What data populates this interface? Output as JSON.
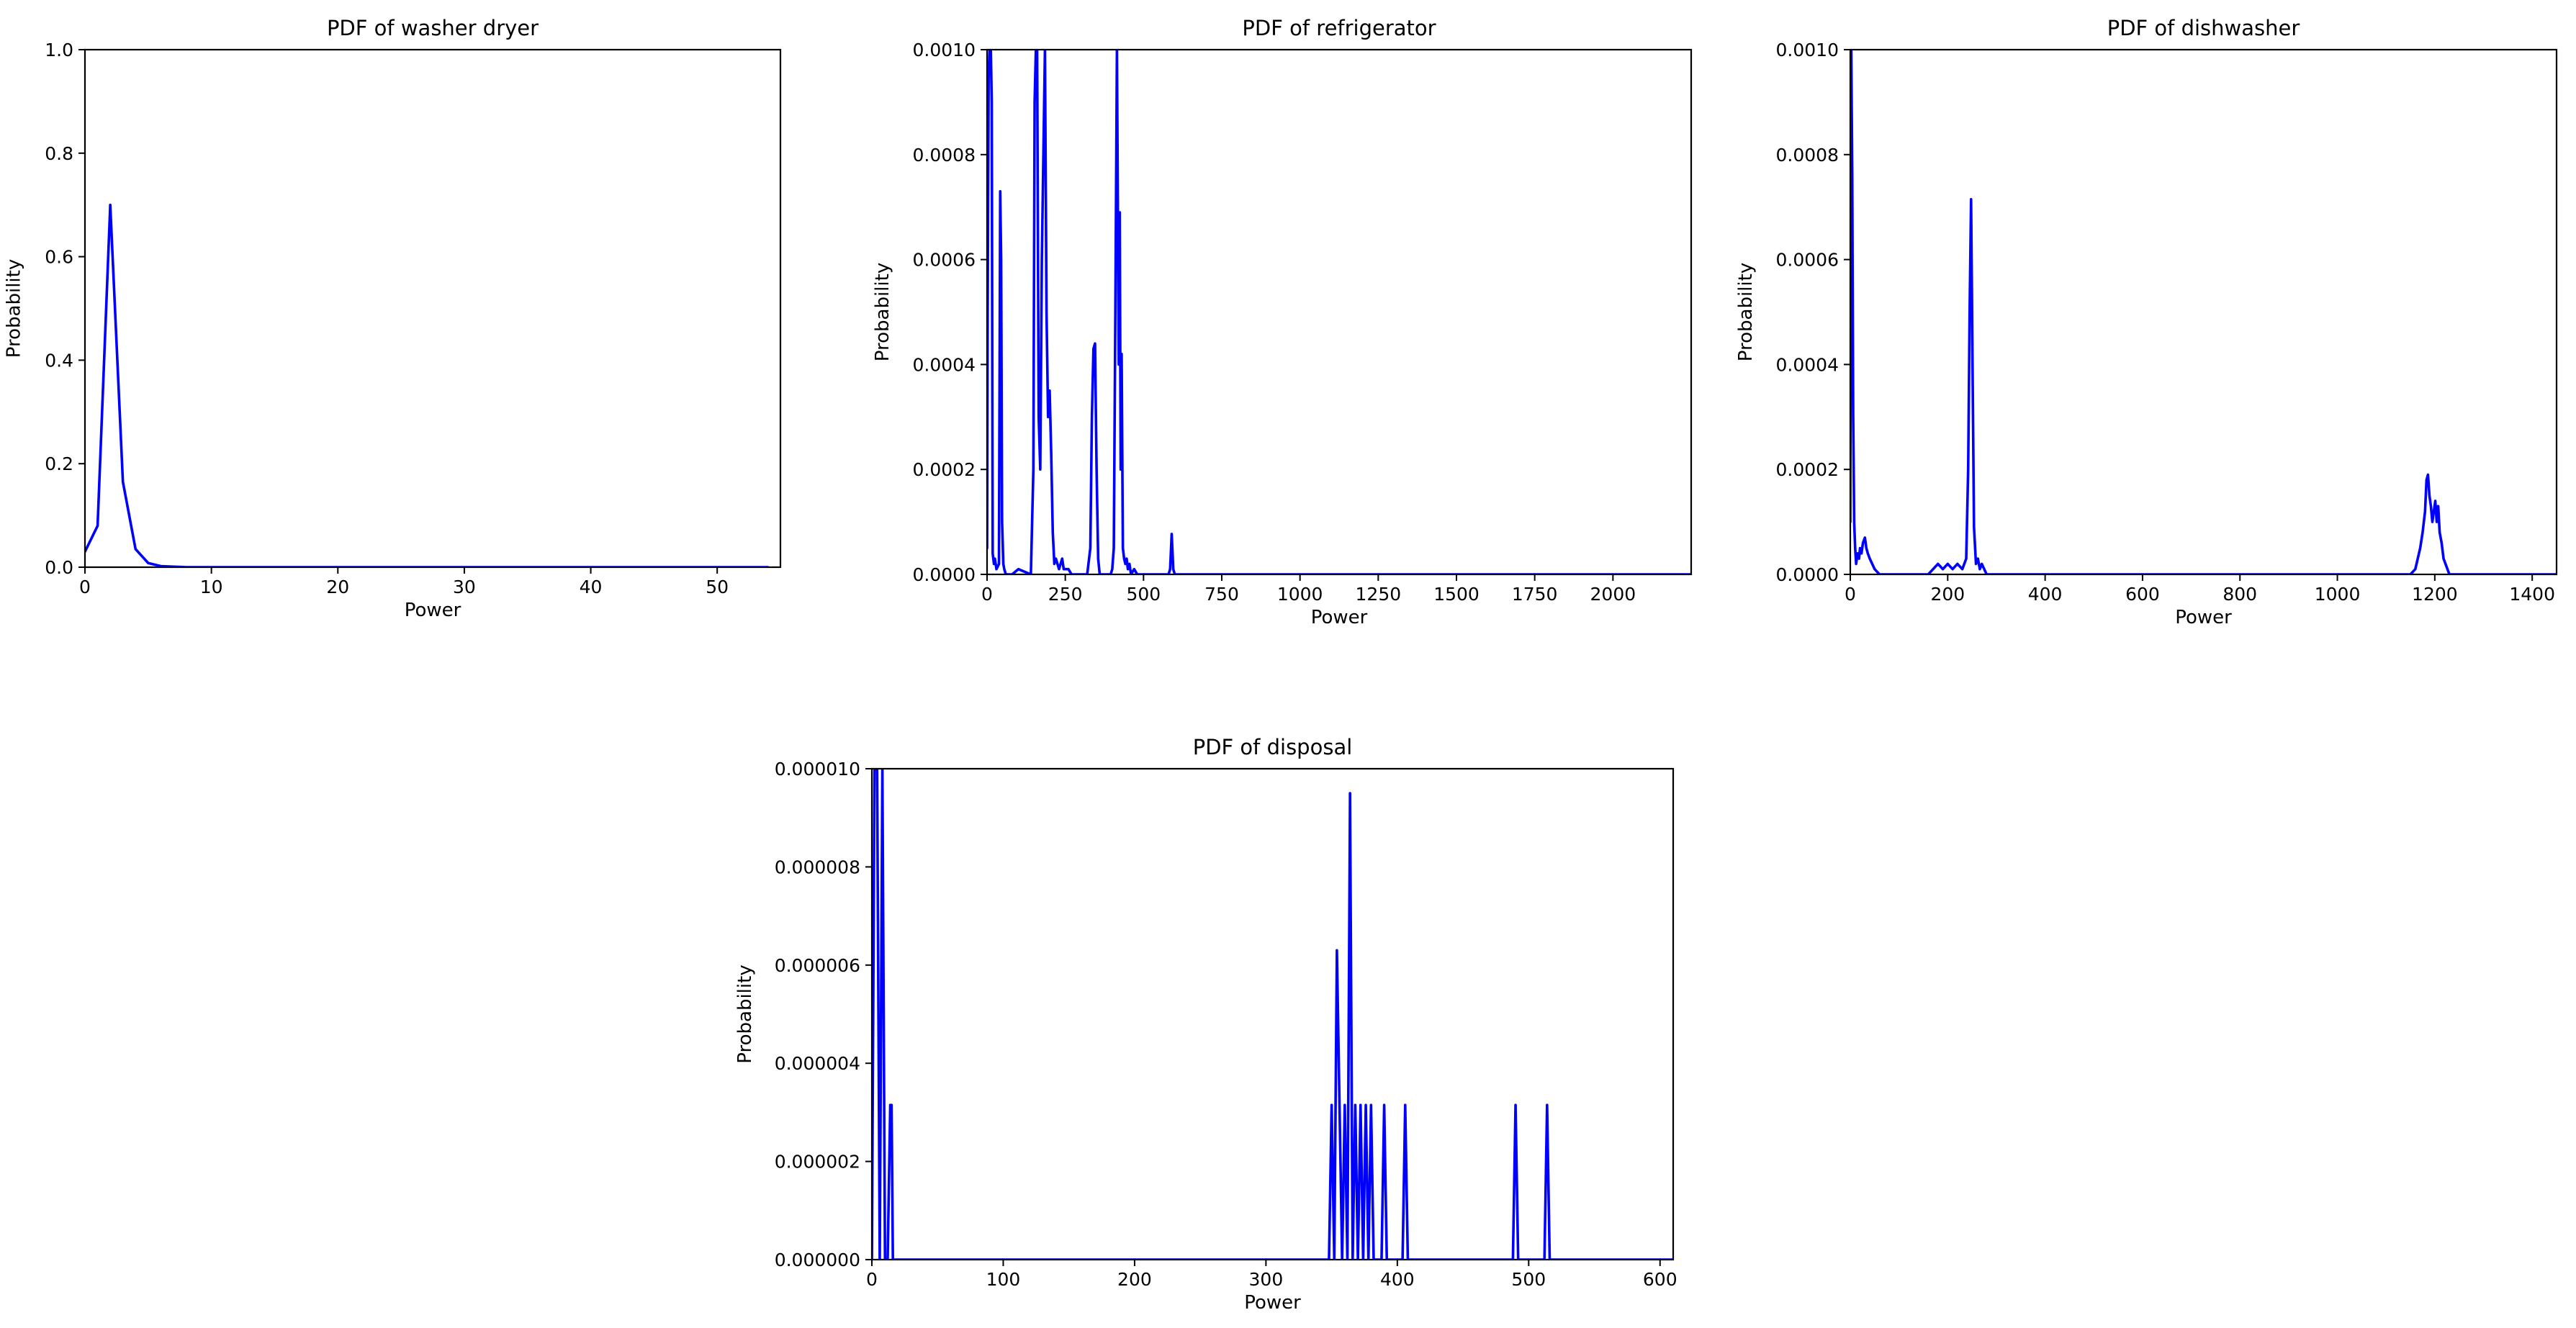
{
  "figure": {
    "background": "#ffffff",
    "line_color": "#0000ff"
  },
  "chart_data": [
    {
      "type": "line",
      "title": "PDF of washer dryer",
      "xlabel": "Power",
      "ylabel": "Probability",
      "xlim": [
        0,
        55
      ],
      "ylim": [
        0,
        1.0
      ],
      "xticks": [
        0,
        10,
        20,
        30,
        40,
        50
      ],
      "xtick_labels": [
        "0",
        "10",
        "20",
        "30",
        "40",
        "50"
      ],
      "yticks": [
        0,
        0.2,
        0.4,
        0.6,
        0.8,
        1.0
      ],
      "ytick_labels": [
        "0.0",
        "0.2",
        "0.4",
        "0.6",
        "0.8",
        "1.0"
      ],
      "grid": false,
      "series": [
        {
          "color": "#0000ff",
          "x": [
            0,
            1,
            2,
            3,
            4,
            5,
            6,
            7,
            8,
            10,
            20,
            30,
            40,
            50,
            54
          ],
          "y": [
            0.03,
            0.08,
            0.7,
            0.165,
            0.035,
            0.008,
            0.002,
            0.001,
            0,
            0,
            0,
            0,
            0,
            0,
            0
          ]
        }
      ]
    },
    {
      "type": "line",
      "title": "PDF of refrigerator",
      "xlabel": "Power",
      "ylabel": "Probability",
      "xlim": [
        0,
        2250
      ],
      "ylim": [
        0,
        0.001
      ],
      "xticks": [
        0,
        250,
        500,
        750,
        1000,
        1250,
        1500,
        1750,
        2000
      ],
      "xtick_labels": [
        "0",
        "250",
        "500",
        "750",
        "1000",
        "1250",
        "1500",
        "1750",
        "2000"
      ],
      "yticks": [
        0,
        0.0002,
        0.0004,
        0.0006,
        0.0008,
        0.001
      ],
      "ytick_labels": [
        "0.0000",
        "0.0002",
        "0.0004",
        "0.0006",
        "0.0008",
        "0.0010"
      ],
      "grid": false,
      "series": [
        {
          "color": "#0000ff",
          "x": [
            0,
            2,
            5,
            8,
            12,
            15,
            18,
            22,
            25,
            30,
            38,
            42,
            45,
            48,
            52,
            55,
            60,
            80,
            100,
            140,
            148,
            152,
            156,
            160,
            165,
            170,
            175,
            180,
            185,
            190,
            195,
            200,
            205,
            210,
            215,
            220,
            225,
            230,
            235,
            240,
            245,
            250,
            260,
            270,
            280,
            300,
            320,
            330,
            335,
            340,
            345,
            350,
            355,
            360,
            365,
            370,
            380,
            395,
            400,
            405,
            410,
            415,
            418,
            421,
            424,
            427,
            430,
            434,
            438,
            442,
            446,
            450,
            455,
            460,
            470,
            480,
            500,
            520,
            550,
            580,
            585,
            590,
            595,
            600,
            620,
            700,
            900,
            1200,
            1500,
            1800,
            2100,
            2200,
            2250
          ],
          "y": [
            5e-05,
            0.0005,
            0.00095,
            0.001,
            0.001,
            0.0009,
            4e-05,
            2e-05,
            3e-05,
            1e-05,
            2e-05,
            0.00073,
            0.0006,
            0.0001,
            2e-05,
            1e-05,
            0,
            0,
            1e-05,
            0,
            0.0002,
            0.0009,
            0.001,
            0.001,
            0.0003,
            0.0002,
            0.0006,
            0.0008,
            0.001,
            0.0005,
            0.0003,
            0.00035,
            0.00023,
            8e-05,
            2e-05,
            3e-05,
            2e-05,
            1e-05,
            2e-05,
            3e-05,
            1e-05,
            1e-05,
            1e-05,
            0,
            0,
            0,
            0,
            5e-05,
            0.0003,
            0.00043,
            0.00044,
            0.0002,
            3e-05,
            0,
            0,
            0,
            0,
            0,
            1e-05,
            5e-05,
            0.0005,
            0.001,
            0.0007,
            0.0004,
            0.00069,
            0.0002,
            0.00042,
            5e-05,
            3e-05,
            2e-05,
            3e-05,
            1e-05,
            2e-05,
            0,
            1e-05,
            0,
            0,
            0,
            0,
            0,
            1e-05,
            7.7e-05,
            1e-05,
            0,
            0,
            0,
            0,
            0,
            0,
            0,
            0,
            0,
            0
          ]
        }
      ]
    },
    {
      "type": "line",
      "title": "PDF of dishwasher",
      "xlabel": "Power",
      "ylabel": "Probability",
      "xlim": [
        0,
        1450
      ],
      "ylim": [
        0,
        0.001
      ],
      "xticks": [
        0,
        200,
        400,
        600,
        800,
        1000,
        1200,
        1400
      ],
      "xtick_labels": [
        "0",
        "200",
        "400",
        "600",
        "800",
        "1000",
        "1200",
        "1400"
      ],
      "yticks": [
        0,
        0.0002,
        0.0004,
        0.0006,
        0.0008,
        0.001
      ],
      "ytick_labels": [
        "0.0000",
        "0.0002",
        "0.0004",
        "0.0006",
        "0.0008",
        "0.0010"
      ],
      "grid": false,
      "series": [
        {
          "color": "#0000ff",
          "x": [
            0,
            2,
            4,
            6,
            8,
            10,
            12,
            15,
            18,
            20,
            23,
            26,
            30,
            33,
            36,
            40,
            45,
            50,
            60,
            80,
            120,
            160,
            170,
            180,
            190,
            200,
            210,
            220,
            230,
            238,
            242,
            245,
            248,
            251,
            254,
            258,
            262,
            266,
            270,
            275,
            280,
            300,
            400,
            600,
            800,
            1000,
            1100,
            1150,
            1160,
            1165,
            1170,
            1175,
            1180,
            1183,
            1186,
            1189,
            1192,
            1195,
            1198,
            1201,
            1204,
            1207,
            1210,
            1214,
            1218,
            1222,
            1226,
            1230,
            1240,
            1250,
            1300,
            1350,
            1400,
            1450
          ],
          "y": [
            0.0001,
            0.001,
            0.00076,
            0.0003,
            0.0001,
            5e-05,
            2e-05,
            4e-05,
            3e-05,
            5e-05,
            4e-05,
            6e-05,
            7e-05,
            5e-05,
            4e-05,
            3e-05,
            2e-05,
            1e-05,
            0,
            0,
            0,
            0,
            1e-05,
            2e-05,
            1e-05,
            2e-05,
            1e-05,
            2e-05,
            1e-05,
            3e-05,
            0.0002,
            0.0005,
            0.000715,
            0.0004,
            9e-05,
            2e-05,
            3e-05,
            1e-05,
            2e-05,
            1e-05,
            0,
            0,
            0,
            0,
            0,
            0,
            0,
            0,
            1e-05,
            3e-05,
            5e-05,
            8e-05,
            0.00012,
            0.00018,
            0.00019,
            0.00015,
            0.00013,
            0.0001,
            0.00012,
            0.00014,
            0.0001,
            0.00013,
            8e-05,
            6e-05,
            3e-05,
            2e-05,
            1e-05,
            0,
            0,
            0,
            0,
            0,
            0,
            0
          ]
        }
      ]
    },
    {
      "type": "line",
      "title": "PDF of disposal",
      "xlabel": "Power",
      "ylabel": "Probability",
      "xlim": [
        0,
        610
      ],
      "ylim": [
        0,
        1e-05
      ],
      "xticks": [
        0,
        100,
        200,
        300,
        400,
        500,
        600
      ],
      "xtick_labels": [
        "0",
        "100",
        "200",
        "300",
        "400",
        "500",
        "600"
      ],
      "yticks": [
        0,
        2e-06,
        4e-06,
        6e-06,
        8e-06,
        1e-05
      ],
      "ytick_labels": [
        "0.000000",
        "0.000002",
        "0.000004",
        "0.000006",
        "0.000008",
        "0.000010"
      ],
      "grid": false,
      "series": [
        {
          "color": "#0000ff",
          "x": [
            0,
            2,
            4,
            6,
            8,
            10,
            12,
            14,
            15,
            16,
            100,
            200,
            300,
            348,
            350,
            352,
            354,
            356,
            358,
            360,
            362,
            364,
            366,
            368,
            370,
            372,
            374,
            376,
            378,
            380,
            382,
            384,
            386,
            388,
            390,
            392,
            394,
            404,
            406,
            408,
            410,
            488,
            490,
            492,
            494,
            512,
            514,
            516,
            518,
            600,
            610
          ],
          "y": [
            0,
            1e-05,
            1e-05,
            0,
            1e-05,
            0,
            0,
            3.15e-06,
            3.15e-06,
            0,
            0,
            0,
            0,
            0,
            3.15e-06,
            0,
            6.3e-06,
            3.15e-06,
            0,
            3.15e-06,
            0,
            9.5e-06,
            0,
            3.15e-06,
            0,
            3.15e-06,
            0,
            3.15e-06,
            0,
            3.15e-06,
            0,
            0,
            0,
            0,
            3.15e-06,
            0,
            0,
            0,
            3.15e-06,
            0,
            0,
            0,
            3.15e-06,
            0,
            0,
            0,
            3.15e-06,
            0,
            0,
            0,
            0
          ]
        }
      ]
    }
  ]
}
